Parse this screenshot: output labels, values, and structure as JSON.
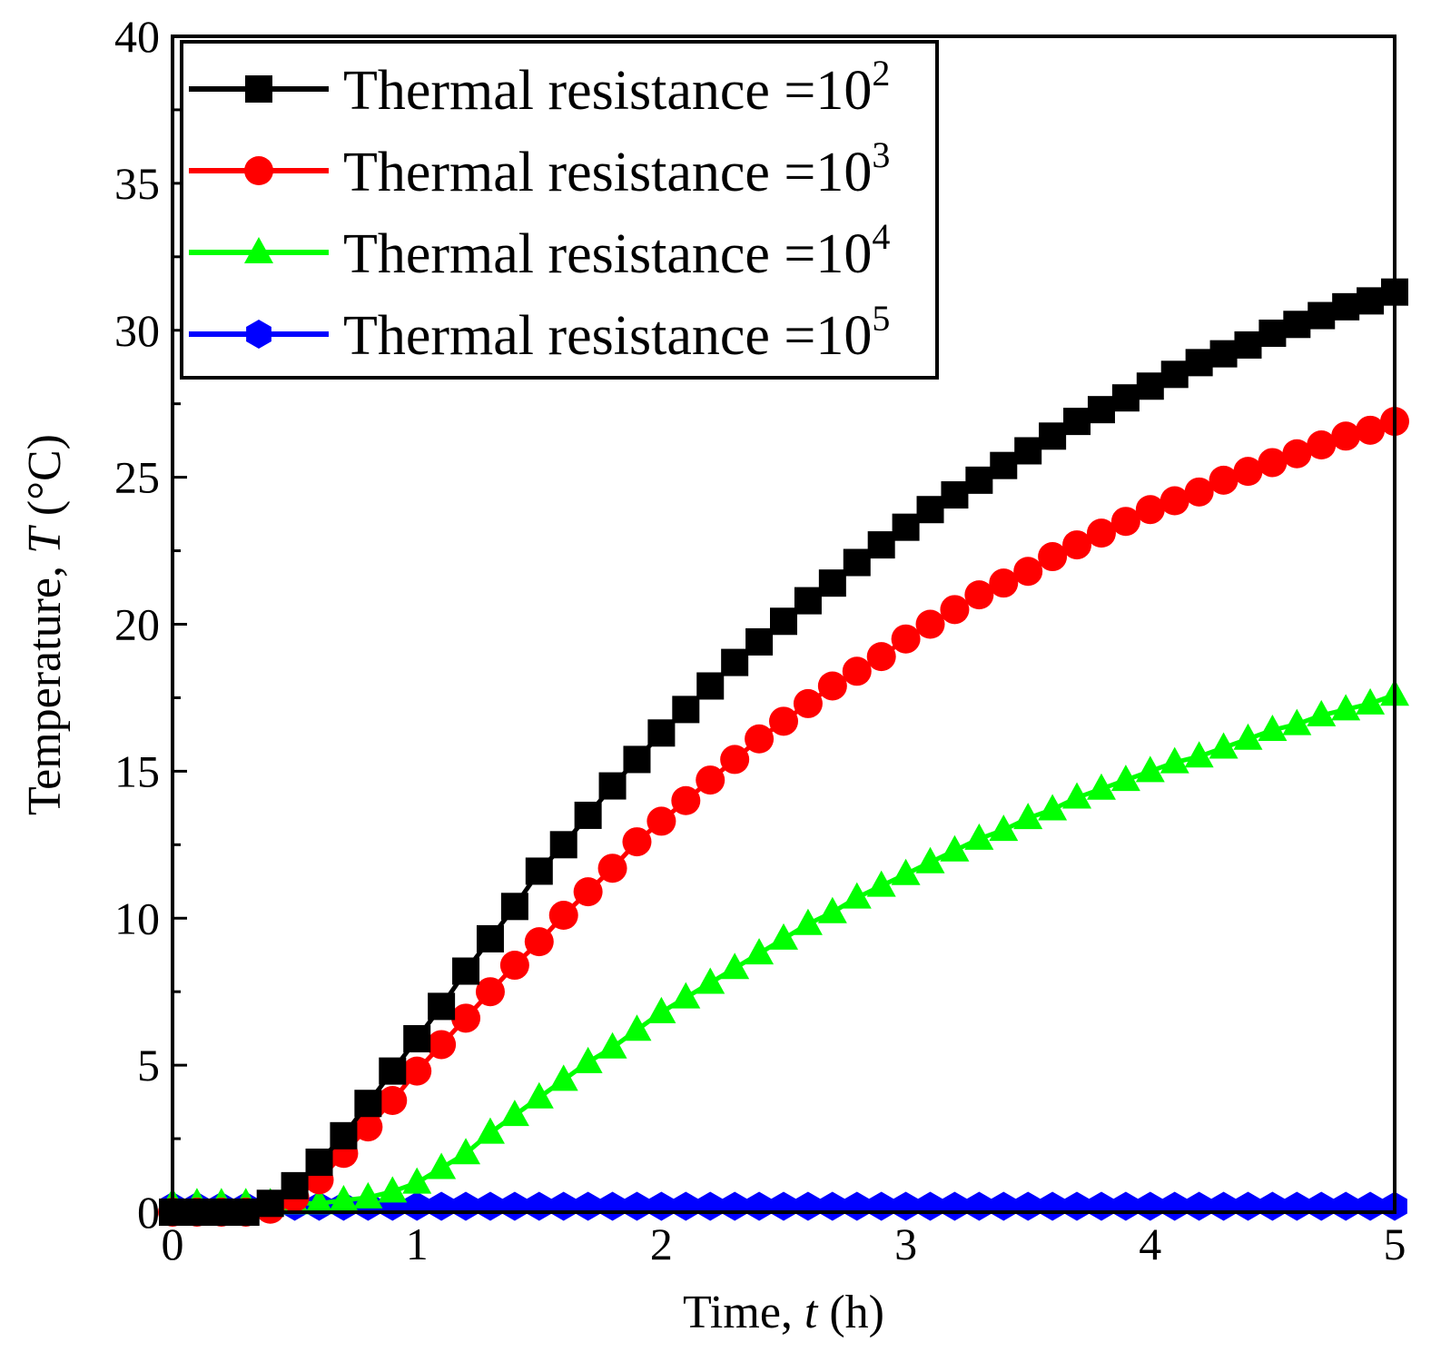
{
  "chart_data": {
    "type": "line",
    "title": "",
    "xlabel_prefix": "Time, ",
    "xlabel_var": "t",
    "xlabel_suffix": " (h)",
    "ylabel_prefix": "Temperature, ",
    "ylabel_var": "T",
    "ylabel_suffix": " (°C)",
    "xlim": [
      0,
      5
    ],
    "ylim": [
      0,
      40
    ],
    "xticks": [
      "0",
      "1",
      "2",
      "3",
      "4",
      "5"
    ],
    "yticks": [
      "0",
      "5",
      "10",
      "15",
      "20",
      "25",
      "30",
      "35",
      "40"
    ],
    "grid": false,
    "legend_position": "top-left",
    "x": [
      0,
      0.1,
      0.2,
      0.3,
      0.4,
      0.5,
      0.6,
      0.7,
      0.8,
      0.9,
      1.0,
      1.1,
      1.2,
      1.3,
      1.4,
      1.5,
      1.6,
      1.7,
      1.8,
      1.9,
      2.0,
      2.1,
      2.2,
      2.3,
      2.4,
      2.5,
      2.6,
      2.7,
      2.8,
      2.9,
      3.0,
      3.1,
      3.2,
      3.3,
      3.4,
      3.5,
      3.6,
      3.7,
      3.8,
      3.9,
      4.0,
      4.1,
      4.2,
      4.3,
      4.4,
      4.5,
      4.6,
      4.7,
      4.8,
      4.9,
      5.0
    ],
    "series": [
      {
        "name_prefix": "Thermal resistance =10",
        "name_exp": "2",
        "color": "#000000",
        "marker": "square",
        "values": [
          0,
          0,
          0,
          0,
          0.3,
          0.9,
          1.7,
          2.6,
          3.7,
          4.8,
          5.9,
          7.0,
          8.2,
          9.3,
          10.4,
          11.6,
          12.5,
          13.5,
          14.5,
          15.4,
          16.3,
          17.1,
          17.9,
          18.7,
          19.4,
          20.1,
          20.8,
          21.4,
          22.1,
          22.7,
          23.3,
          23.9,
          24.4,
          24.9,
          25.4,
          25.9,
          26.4,
          26.9,
          27.3,
          27.7,
          28.1,
          28.5,
          28.9,
          29.2,
          29.5,
          29.9,
          30.2,
          30.5,
          30.8,
          31.0,
          31.3
        ]
      },
      {
        "name_prefix": "Thermal resistance =10",
        "name_exp": "3",
        "color": "#ff0000",
        "marker": "circle",
        "values": [
          0,
          0,
          0,
          0,
          0.1,
          0.5,
          1.1,
          2.0,
          2.9,
          3.8,
          4.8,
          5.7,
          6.6,
          7.5,
          8.4,
          9.2,
          10.1,
          10.9,
          11.7,
          12.6,
          13.3,
          14.0,
          14.7,
          15.4,
          16.1,
          16.7,
          17.3,
          17.9,
          18.4,
          18.9,
          19.5,
          20.0,
          20.5,
          21.0,
          21.4,
          21.8,
          22.3,
          22.7,
          23.1,
          23.5,
          23.9,
          24.2,
          24.5,
          24.9,
          25.2,
          25.5,
          25.8,
          26.1,
          26.4,
          26.6,
          26.9
        ]
      },
      {
        "name_prefix": "Thermal resistance =10",
        "name_exp": "4",
        "color": "#00ff00",
        "marker": "triangle",
        "values": [
          0.3,
          0.3,
          0.3,
          0.3,
          0.3,
          0.3,
          0.3,
          0.4,
          0.5,
          0.7,
          1.0,
          1.5,
          2.0,
          2.7,
          3.3,
          3.9,
          4.5,
          5.1,
          5.6,
          6.2,
          6.8,
          7.3,
          7.8,
          8.3,
          8.8,
          9.3,
          9.8,
          10.2,
          10.7,
          11.1,
          11.5,
          11.9,
          12.3,
          12.7,
          13.0,
          13.4,
          13.7,
          14.1,
          14.4,
          14.7,
          15.0,
          15.3,
          15.5,
          15.8,
          16.1,
          16.4,
          16.6,
          16.9,
          17.1,
          17.3,
          17.6
        ]
      },
      {
        "name_prefix": "Thermal resistance =10",
        "name_exp": "5",
        "color": "#0000ff",
        "marker": "hexagon",
        "values": [
          0.2,
          0.2,
          0.2,
          0.2,
          0.2,
          0.2,
          0.2,
          0.2,
          0.2,
          0.2,
          0.2,
          0.2,
          0.2,
          0.2,
          0.2,
          0.2,
          0.2,
          0.2,
          0.2,
          0.2,
          0.2,
          0.2,
          0.2,
          0.2,
          0.2,
          0.2,
          0.2,
          0.2,
          0.2,
          0.2,
          0.2,
          0.2,
          0.2,
          0.2,
          0.2,
          0.2,
          0.2,
          0.2,
          0.2,
          0.2,
          0.2,
          0.2,
          0.2,
          0.2,
          0.2,
          0.2,
          0.2,
          0.2,
          0.2,
          0.2,
          0.2
        ]
      }
    ]
  }
}
